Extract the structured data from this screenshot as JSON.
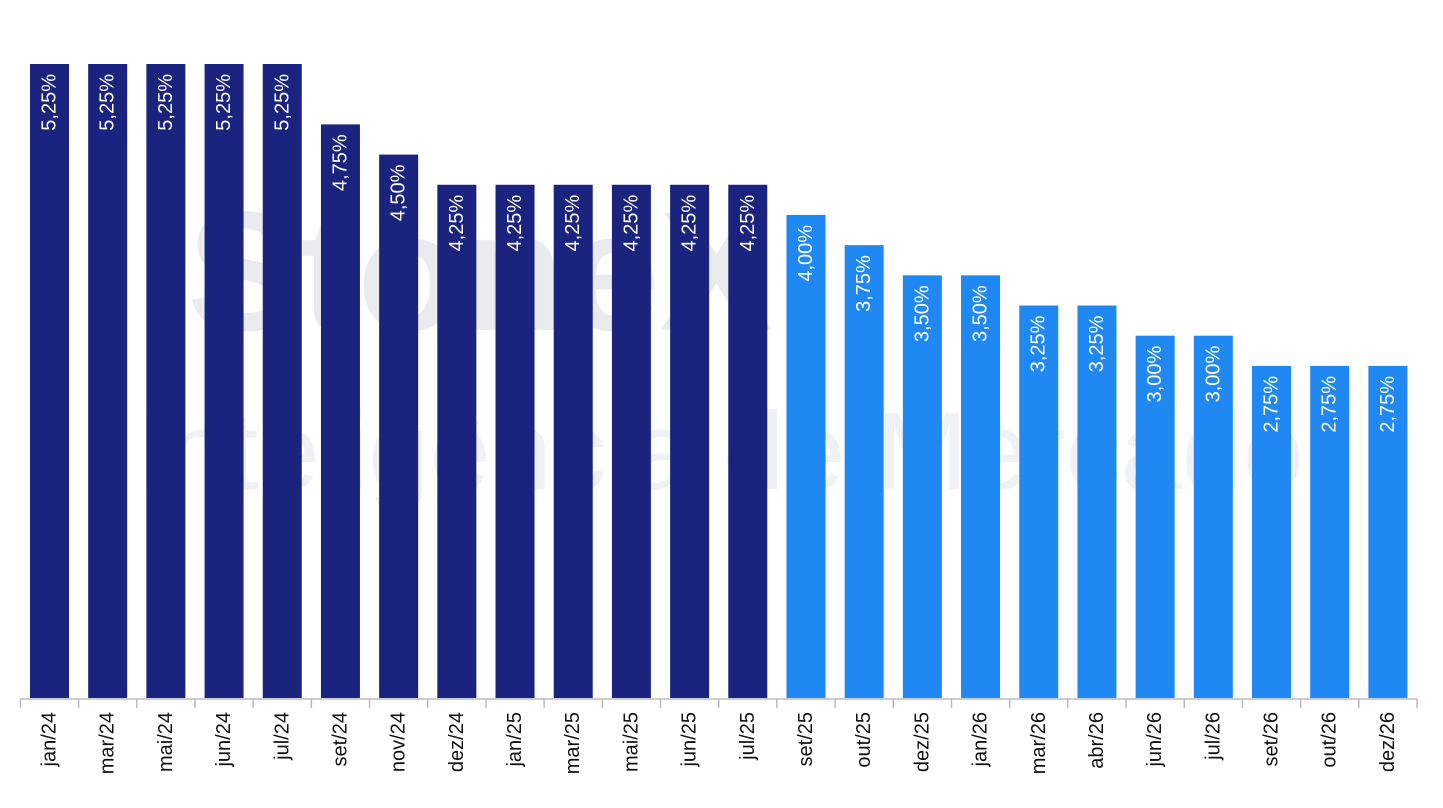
{
  "chart_data": {
    "type": "bar",
    "watermark": "StoneX",
    "watermark_subtitle": "Inteligência de Mercado",
    "categories": [
      "jan/24",
      "mar/24",
      "mai/24",
      "jun/24",
      "jul/24",
      "set/24",
      "nov/24",
      "dez/24",
      "jan/25",
      "mar/25",
      "mai/25",
      "jun/25",
      "jul/25",
      "set/25",
      "out/25",
      "dez/25",
      "jan/26",
      "mar/26",
      "abr/26",
      "jun/26",
      "jul/26",
      "set/26",
      "out/26",
      "dez/26"
    ],
    "values": [
      5.25,
      5.25,
      5.25,
      5.25,
      5.25,
      4.75,
      4.5,
      4.25,
      4.25,
      4.25,
      4.25,
      4.25,
      4.25,
      4.0,
      3.75,
      3.5,
      3.5,
      3.25,
      3.25,
      3.0,
      3.0,
      2.75,
      2.75,
      2.75
    ],
    "value_labels": [
      "5,25%",
      "5,25%",
      "5,25%",
      "5,25%",
      "5,25%",
      "4,75%",
      "4,50%",
      "4,25%",
      "4,25%",
      "4,25%",
      "4,25%",
      "4,25%",
      "4,25%",
      "4,00%",
      "3,75%",
      "3,50%",
      "3,50%",
      "3,25%",
      "3,25%",
      "3,00%",
      "3,00%",
      "2,75%",
      "2,75%",
      "2,75%"
    ],
    "colors": [
      "#1a237e",
      "#1a237e",
      "#1a237e",
      "#1a237e",
      "#1a237e",
      "#1a237e",
      "#1a237e",
      "#1a237e",
      "#1a237e",
      "#1a237e",
      "#1a237e",
      "#1a237e",
      "#1a237e",
      "#1f88f2",
      "#1f88f2",
      "#1f88f2",
      "#1f88f2",
      "#1f88f2",
      "#1f88f2",
      "#1f88f2",
      "#1f88f2",
      "#1f88f2",
      "#1f88f2",
      "#1f88f2"
    ],
    "ylim": [
      0,
      5.25
    ],
    "grid": false
  }
}
